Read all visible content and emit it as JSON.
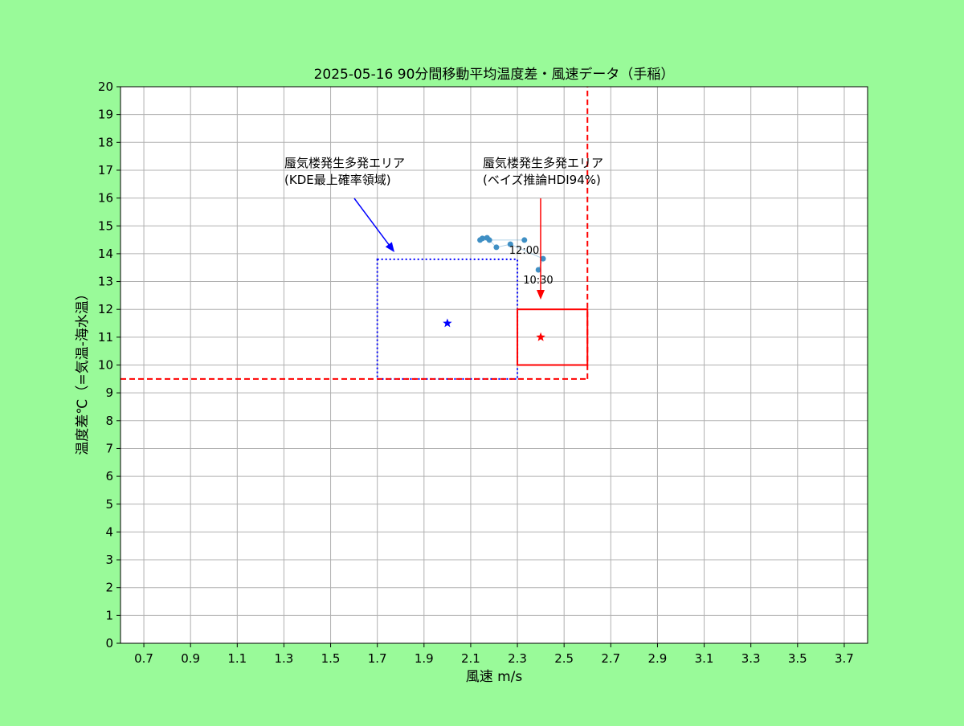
{
  "chart_data": {
    "type": "scatter",
    "title": "2025-05-16  90分間移動平均温度差・風速データ（手稲）",
    "x_label": "風速 m/s",
    "y_label": "温度差℃（=気温-海水温）",
    "xlim": [
      0.6,
      3.8
    ],
    "xticks": [
      0.7,
      0.9,
      1.1,
      1.3,
      1.5,
      1.7,
      1.9,
      2.1,
      2.3,
      2.5,
      2.7,
      2.9,
      3.1,
      3.3,
      3.5,
      3.7
    ],
    "ylim": [
      0,
      20
    ],
    "yticks": [
      0,
      1,
      2,
      3,
      4,
      5,
      6,
      7,
      8,
      9,
      10,
      11,
      12,
      13,
      14,
      15,
      16,
      17,
      18,
      19,
      20
    ],
    "grid": true,
    "series": [
      {
        "color": "#3f8fc4",
        "x": [
          2.39,
          2.41,
          2.27,
          2.21,
          2.18,
          2.17,
          2.15,
          2.14,
          2.33
        ],
        "values": [
          13.42,
          13.82,
          14.34,
          14.23,
          14.49,
          14.57,
          14.55,
          14.49,
          14.49
        ],
        "point_labels": [
          "10:30",
          null,
          null,
          null,
          null,
          null,
          null,
          null,
          "12:00"
        ]
      }
    ],
    "regions": [
      {
        "color": "#0000ff",
        "style": "dotted",
        "xlim": [
          1.7,
          2.3
        ],
        "ylim": [
          9.5,
          13.8
        ],
        "center": [
          2.0,
          11.5
        ],
        "text": [
          "蜃気楼発生多発エリア",
          "(KDE最上確率領域)"
        ]
      },
      {
        "color": "#ff0000",
        "style": "solid",
        "xlim": [
          2.3,
          2.6
        ],
        "ylim": [
          10,
          12
        ],
        "center": [
          2.4,
          11
        ],
        "text": [
          "蜃気楼発生多発エリア",
          "(ベイズ推論HDI94%)"
        ]
      }
    ],
    "thresholds": {
      "color": "#ff0000",
      "x": 2.6,
      "y": 9.5
    }
  }
}
